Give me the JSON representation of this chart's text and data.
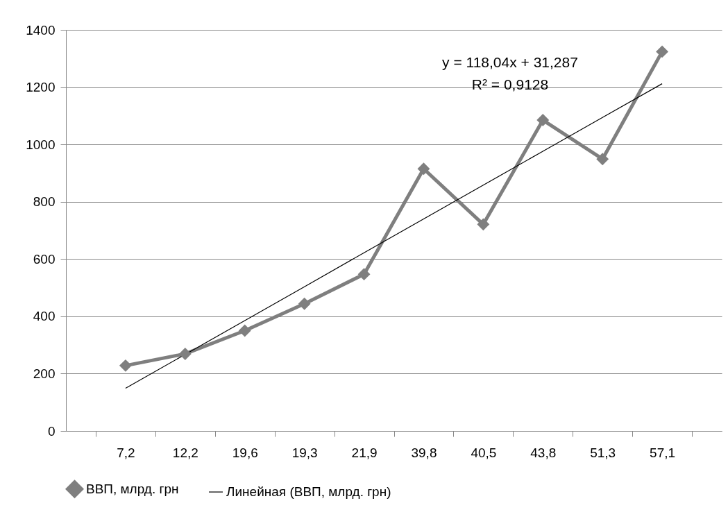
{
  "chart_data": {
    "type": "line",
    "categories": [
      "7,2",
      "12,2",
      "19,6",
      "19,3",
      "21,9",
      "39,8",
      "40,5",
      "43,8",
      "51,3",
      "57,1"
    ],
    "series": [
      {
        "name": "ВВП, млрд. грн",
        "color": "#7f7f7f",
        "marker": "diamond",
        "values": [
          228,
          269,
          350,
          444,
          547,
          915,
          721,
          1085,
          949,
          1324
        ]
      },
      {
        "name": "Линейная (ВВП, млрд. грн)",
        "color": "#000000",
        "marker": "none",
        "values": [
          149,
          267,
          385,
          503,
          622,
          740,
          858,
          976,
          1094,
          1212
        ]
      }
    ],
    "ylim": [
      0,
      1400
    ],
    "yticks": [
      0,
      200,
      400,
      600,
      800,
      1000,
      1200,
      1400
    ],
    "grid": "y",
    "legend": "bottom",
    "annotations": [
      "y = 118,04x + 31,287",
      "R² = 0,9128"
    ]
  }
}
